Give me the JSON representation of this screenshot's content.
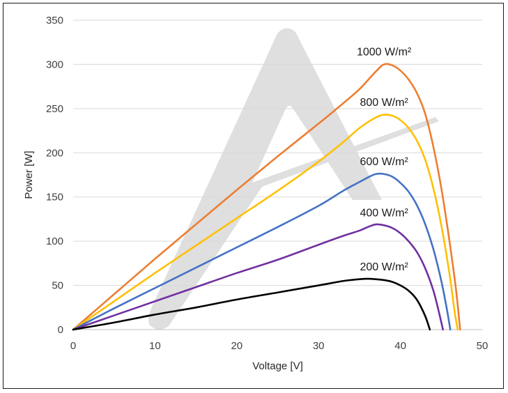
{
  "chart_data": {
    "type": "line",
    "title": "",
    "xlabel": "Voltage [V]",
    "ylabel": "Power [W]",
    "xlim": [
      0,
      50
    ],
    "ylim": [
      0,
      350
    ],
    "xticks": [
      0,
      10,
      20,
      30,
      40,
      50
    ],
    "yticks": [
      0,
      50,
      100,
      150,
      200,
      250,
      300,
      350
    ],
    "grid": "horizontal",
    "legend": "inline labels near curve peaks",
    "watermark": "grey stylized A logo",
    "series": [
      {
        "name": "1000 W/m²",
        "color": "#ED7D31",
        "points": [
          [
            0,
            0
          ],
          [
            5,
            40
          ],
          [
            10,
            80
          ],
          [
            15,
            119
          ],
          [
            20,
            158
          ],
          [
            25,
            196
          ],
          [
            30,
            233
          ],
          [
            33,
            256
          ],
          [
            35,
            272
          ],
          [
            37,
            292
          ],
          [
            38,
            300
          ],
          [
            39,
            299
          ],
          [
            40,
            293
          ],
          [
            41,
            283
          ],
          [
            42,
            268
          ],
          [
            43,
            245
          ],
          [
            44,
            208
          ],
          [
            45,
            160
          ],
          [
            46,
            100
          ],
          [
            46.8,
            45
          ],
          [
            47.3,
            0
          ]
        ]
      },
      {
        "name": "800 W/m²",
        "color": "#FFC000",
        "points": [
          [
            0,
            0
          ],
          [
            5,
            32
          ],
          [
            10,
            64
          ],
          [
            15,
            95
          ],
          [
            20,
            126
          ],
          [
            25,
            157
          ],
          [
            30,
            190
          ],
          [
            33,
            212
          ],
          [
            35,
            228
          ],
          [
            37,
            240
          ],
          [
            38,
            243
          ],
          [
            39,
            242
          ],
          [
            40,
            237
          ],
          [
            41,
            228
          ],
          [
            42,
            214
          ],
          [
            43,
            193
          ],
          [
            44,
            161
          ],
          [
            45,
            118
          ],
          [
            46,
            63
          ],
          [
            46.6,
            22
          ],
          [
            47,
            0
          ]
        ]
      },
      {
        "name": "600 W/m²",
        "color": "#4472C4",
        "points": [
          [
            0,
            0
          ],
          [
            5,
            24
          ],
          [
            10,
            47
          ],
          [
            15,
            70
          ],
          [
            20,
            93
          ],
          [
            25,
            116
          ],
          [
            30,
            140
          ],
          [
            33,
            157
          ],
          [
            35,
            167
          ],
          [
            36,
            172
          ],
          [
            37,
            176
          ],
          [
            38,
            176
          ],
          [
            39,
            173
          ],
          [
            40,
            166
          ],
          [
            41,
            156
          ],
          [
            42,
            141
          ],
          [
            43,
            120
          ],
          [
            44,
            92
          ],
          [
            45,
            55
          ],
          [
            45.7,
            22
          ],
          [
            46.1,
            0
          ]
        ]
      },
      {
        "name": "400 W/m²",
        "color": "#7030A0",
        "points": [
          [
            0,
            0
          ],
          [
            5,
            16
          ],
          [
            10,
            32
          ],
          [
            15,
            48
          ],
          [
            20,
            64
          ],
          [
            25,
            79
          ],
          [
            30,
            96
          ],
          [
            33,
            106
          ],
          [
            35,
            112
          ],
          [
            36,
            116
          ],
          [
            37,
            119
          ],
          [
            38,
            118
          ],
          [
            39,
            115
          ],
          [
            40,
            109
          ],
          [
            41,
            100
          ],
          [
            42,
            88
          ],
          [
            43,
            70
          ],
          [
            44,
            45
          ],
          [
            44.7,
            20
          ],
          [
            45.2,
            0
          ]
        ]
      },
      {
        "name": "200 W/m²",
        "color": "#000000",
        "points": [
          [
            0,
            0
          ],
          [
            5,
            8
          ],
          [
            10,
            17
          ],
          [
            15,
            25
          ],
          [
            20,
            34
          ],
          [
            25,
            42
          ],
          [
            30,
            50
          ],
          [
            33,
            55
          ],
          [
            35,
            57
          ],
          [
            36,
            57.5
          ],
          [
            37,
            57
          ],
          [
            38,
            56
          ],
          [
            39,
            54
          ],
          [
            40,
            50
          ],
          [
            41,
            44
          ],
          [
            42,
            34
          ],
          [
            43,
            16
          ],
          [
            43.6,
            0
          ]
        ]
      }
    ],
    "labels": [
      {
        "text": "1000 W/m²",
        "x": 38,
        "y": 310
      },
      {
        "text": "800 W/m²",
        "x": 38,
        "y": 253
      },
      {
        "text": "600 W/m²",
        "x": 38,
        "y": 186
      },
      {
        "text": "400 W/m²",
        "x": 38,
        "y": 128
      },
      {
        "text": "200 W/m²",
        "x": 38,
        "y": 67
      }
    ]
  }
}
